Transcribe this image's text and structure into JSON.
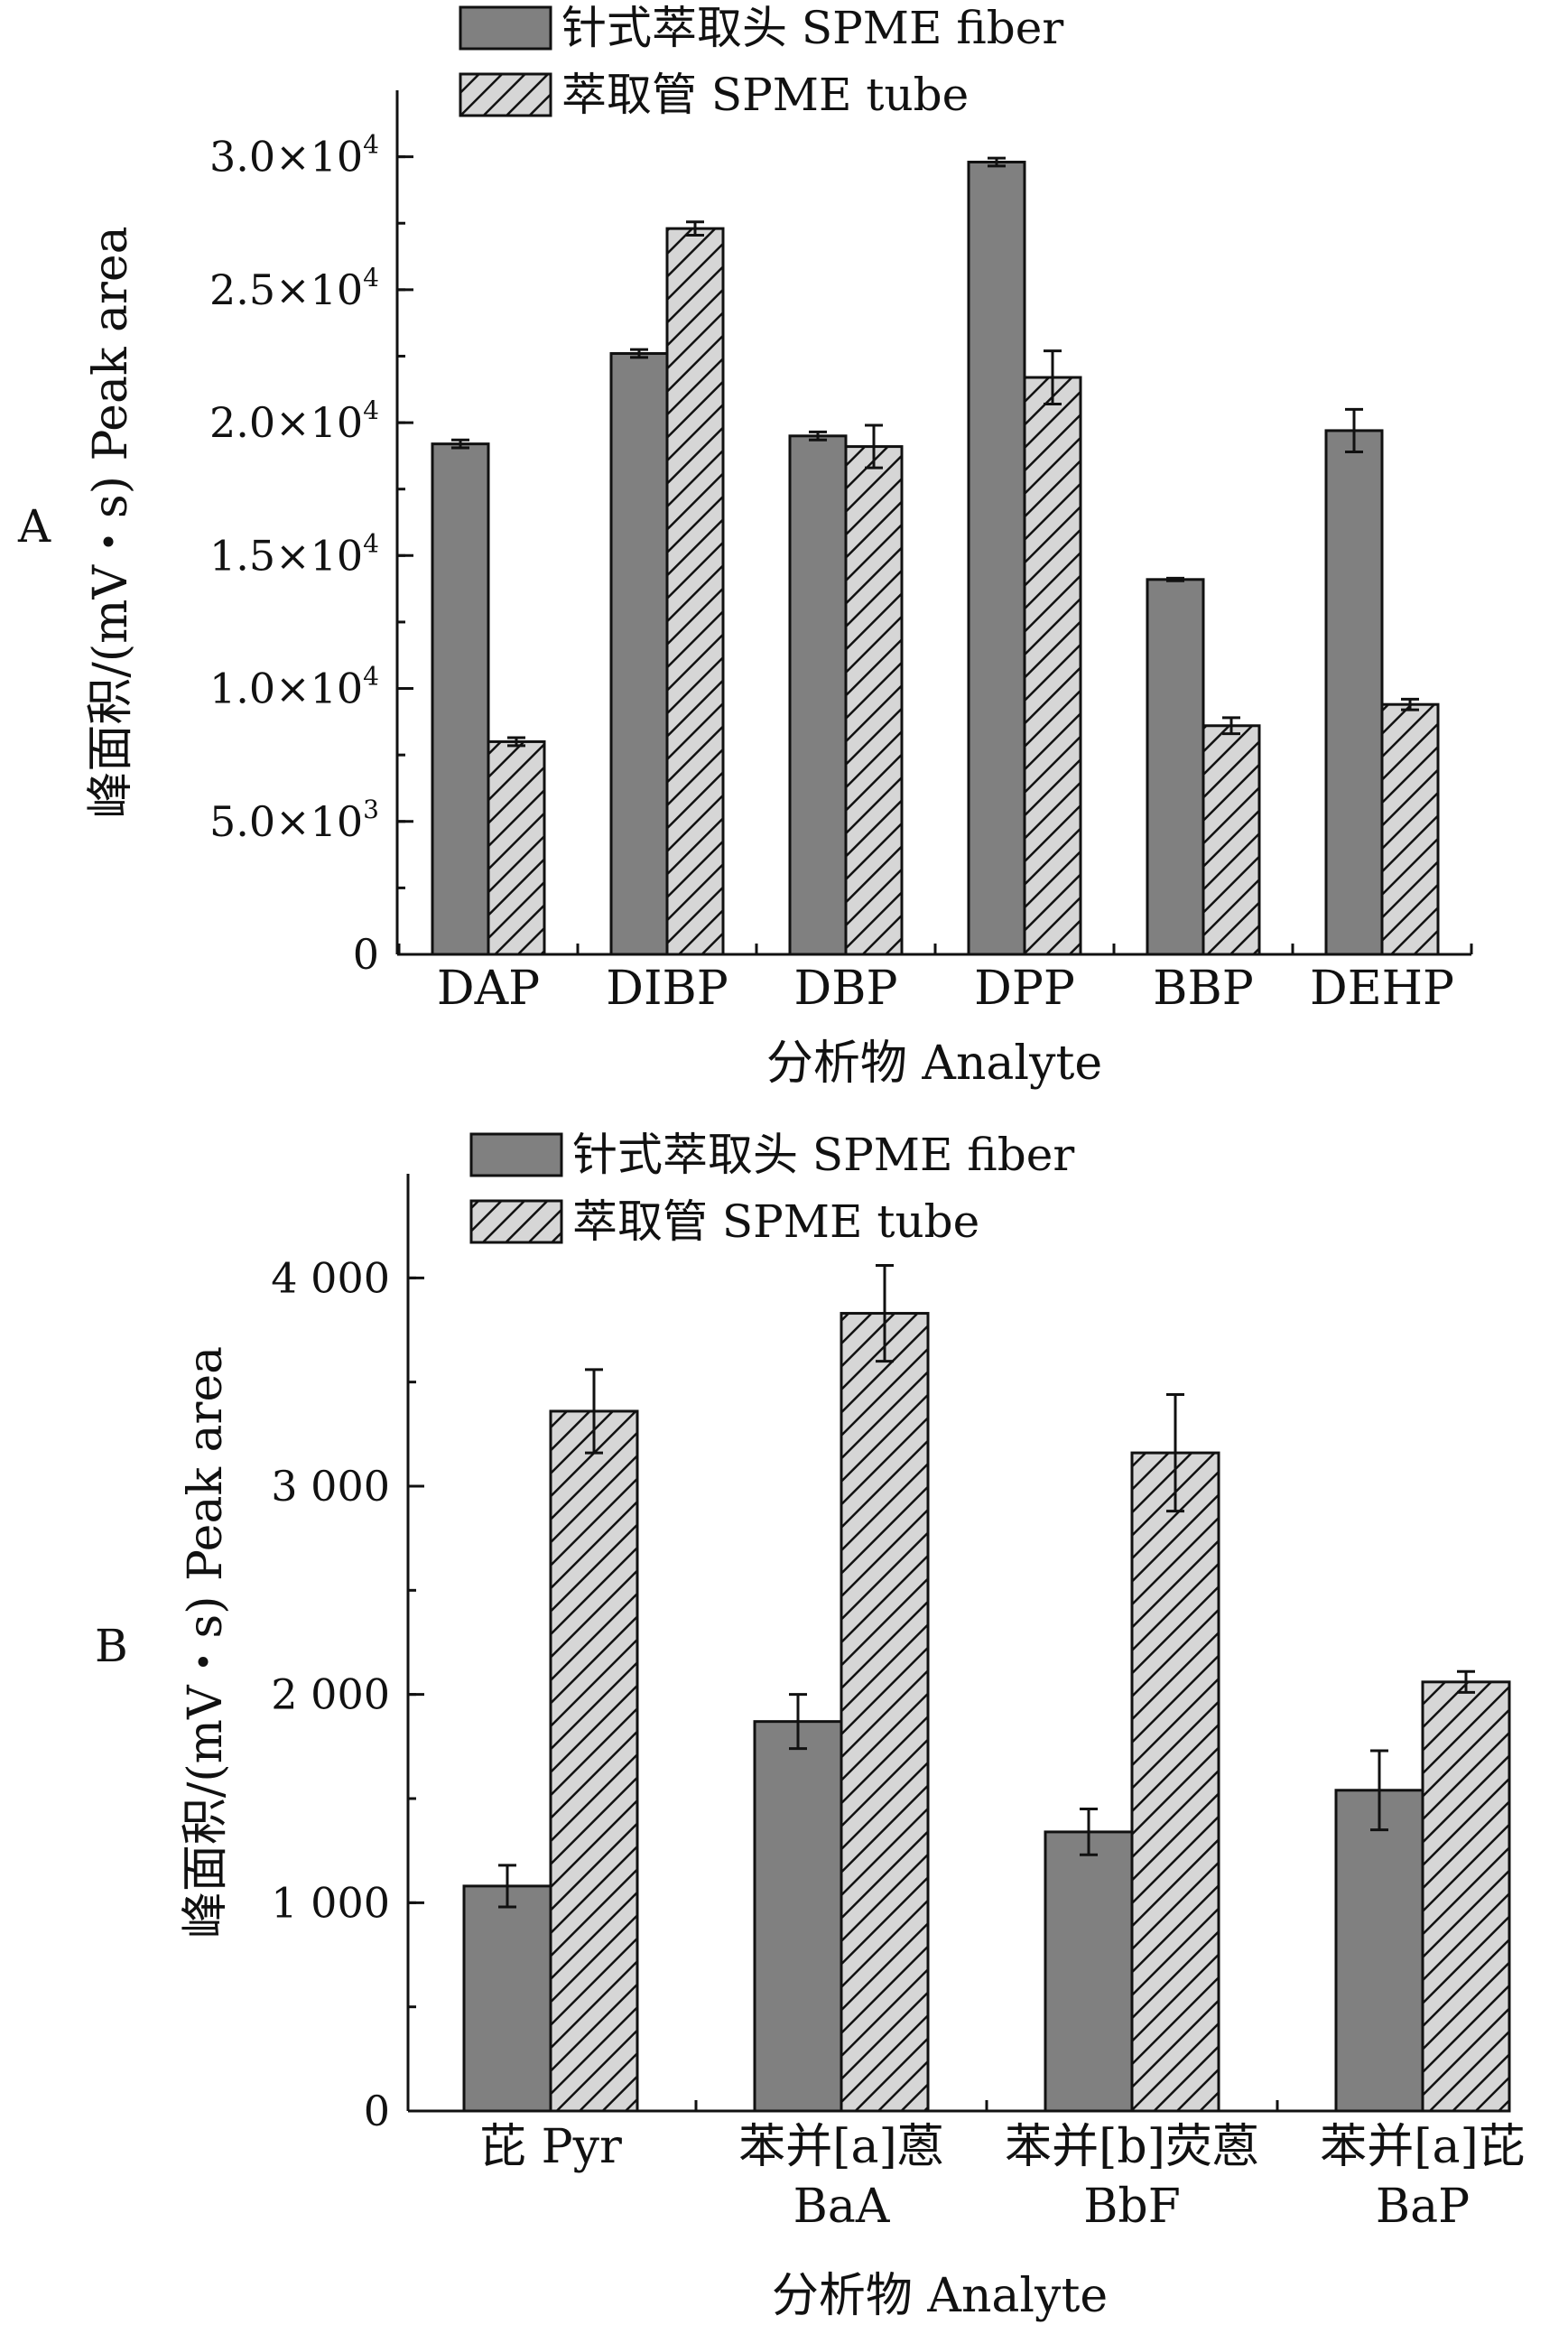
{
  "chart_data": [
    {
      "type": "bar",
      "panel": "A",
      "categories": [
        "DAP",
        "DIBP",
        "DBP",
        "DPP",
        "BBP",
        "DEHP"
      ],
      "series": [
        {
          "name": "针式萃取头 SPME fiber",
          "pattern": "solid",
          "values": [
            19200,
            22600,
            19500,
            29800,
            14100,
            19700
          ],
          "errors": [
            150,
            150,
            150,
            150,
            50,
            800
          ]
        },
        {
          "name": "萃取管 SPME tube",
          "pattern": "hatched",
          "values": [
            8000,
            27300,
            19100,
            21700,
            8600,
            9400
          ],
          "errors": [
            150,
            250,
            800,
            1000,
            300,
            200
          ]
        }
      ],
      "xlabel": "分析物 Analyte",
      "ylabel": "峰面积/(mV・s) Peak area",
      "ylim": [
        0,
        32500
      ],
      "yticks": [
        {
          "value": 0,
          "mant": "0",
          "exp": ""
        },
        {
          "value": 5000,
          "mant": "5.0×10",
          "exp": "3"
        },
        {
          "value": 10000,
          "mant": "1.0×10",
          "exp": "4"
        },
        {
          "value": 15000,
          "mant": "1.5×10",
          "exp": "4"
        },
        {
          "value": 20000,
          "mant": "2.0×10",
          "exp": "4"
        },
        {
          "value": 25000,
          "mant": "2.5×10",
          "exp": "4"
        },
        {
          "value": 30000,
          "mant": "3.0×10",
          "exp": "4"
        }
      ],
      "minor_step": 2500,
      "legend": "top-left"
    },
    {
      "type": "bar",
      "panel": "B",
      "categories": [
        [
          "芘 Pyr"
        ],
        [
          "苯并[a]蒽",
          "BaA"
        ],
        [
          "苯并[b]荧蒽",
          "BbF"
        ],
        [
          "苯并[a]芘",
          "BaP"
        ]
      ],
      "series": [
        {
          "name": "针式萃取头 SPME fiber",
          "pattern": "solid",
          "values": [
            1080,
            1870,
            1340,
            1540
          ],
          "errors": [
            100,
            130,
            110,
            190
          ]
        },
        {
          "name": "萃取管 SPME tube",
          "pattern": "hatched",
          "values": [
            3360,
            3830,
            3160,
            2060
          ],
          "errors": [
            200,
            230,
            280,
            50
          ]
        }
      ],
      "xlabel": "分析物 Analyte",
      "ylabel": "峰面积/(mV・s) Peak area",
      "ylim": [
        0,
        4500
      ],
      "yticks": [
        {
          "value": 0,
          "mant": "0",
          "exp": ""
        },
        {
          "value": 1000,
          "mant": "1 000",
          "exp": ""
        },
        {
          "value": 2000,
          "mant": "2 000",
          "exp": ""
        },
        {
          "value": 3000,
          "mant": "3 000",
          "exp": ""
        },
        {
          "value": 4000,
          "mant": "4 000",
          "exp": ""
        }
      ],
      "minor_step": 500,
      "legend": "top-left"
    }
  ],
  "colors": {
    "bar_fill": "#808080",
    "hatch_bg": "#d6d6d6",
    "stroke": "#111111"
  }
}
